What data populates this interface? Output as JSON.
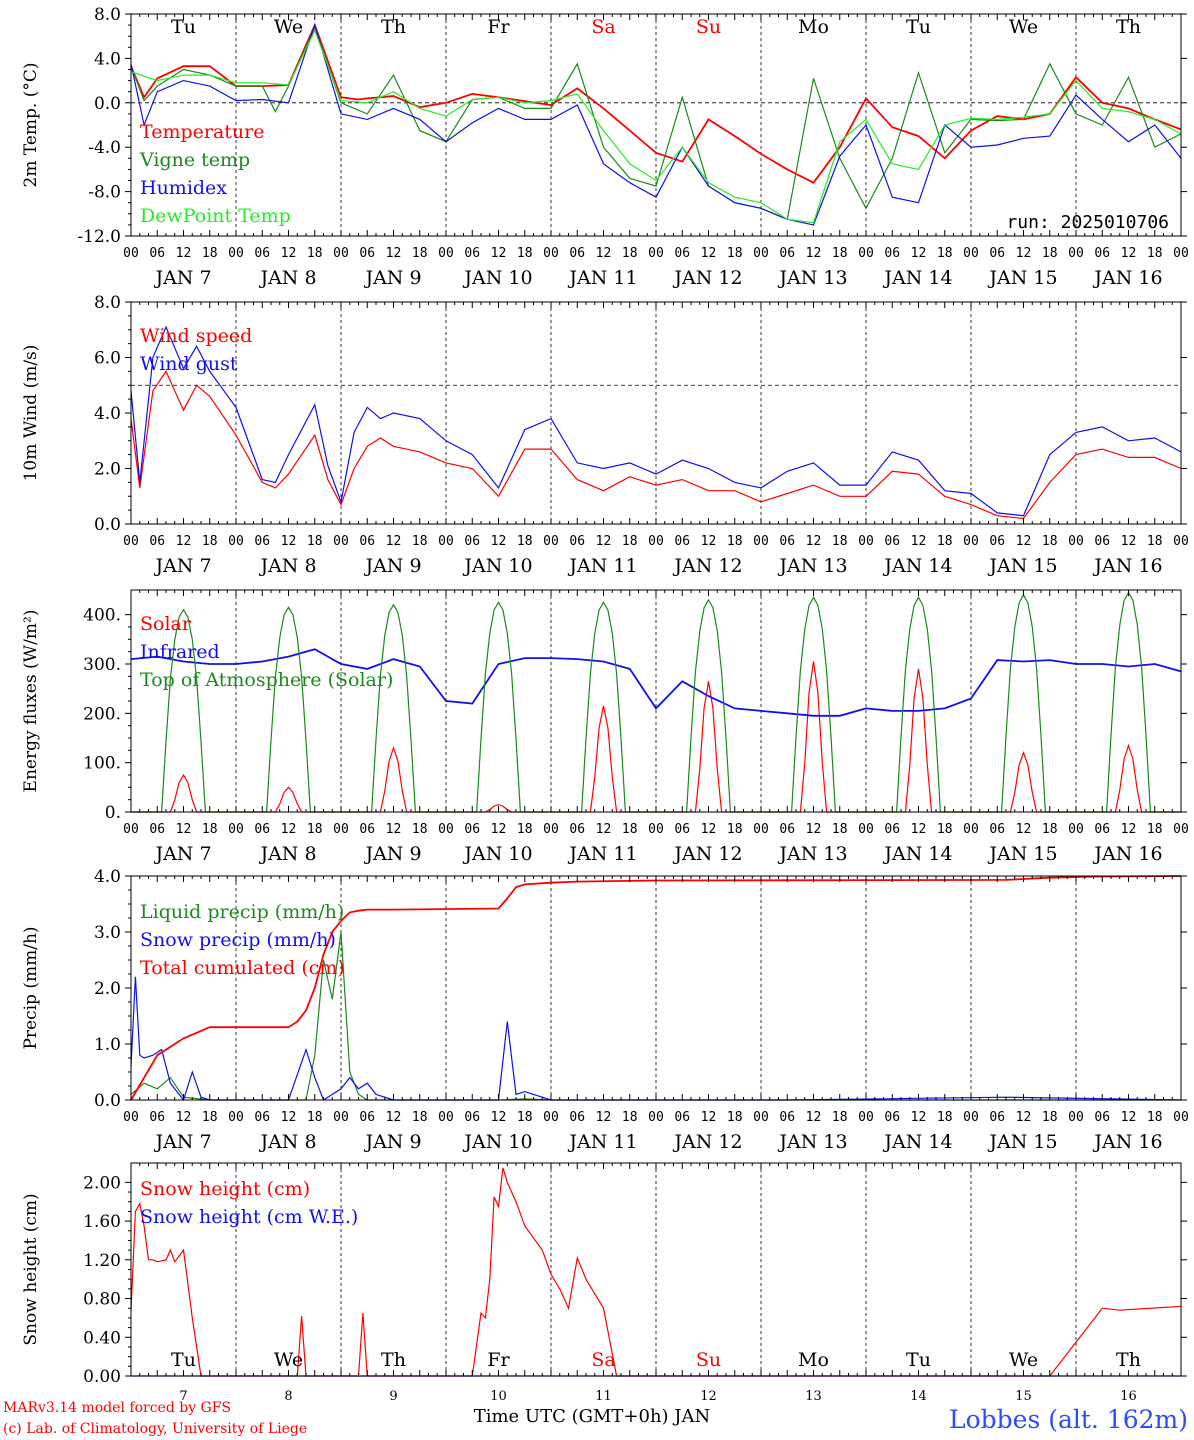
{
  "credits": {
    "model": "MARv3.14 model forced by GFS",
    "lab": "(c) Lab. of Climatology, University of Liege"
  },
  "station": "Lobbes (alt. 162m)",
  "xaxis_title": "Time UTC (GMT+0h) JAN",
  "hour_ticks": [
    "00",
    "06",
    "12",
    "18"
  ],
  "end_tick": "00",
  "day_labels": [
    "JAN  7",
    "JAN  8",
    "JAN  9",
    "JAN 10",
    "JAN 11",
    "JAN 12",
    "JAN 13",
    "JAN 14",
    "JAN 15",
    "JAN 16"
  ],
  "day_numbers": [
    "7",
    "8",
    "9",
    "10",
    "11",
    "12",
    "13",
    "14",
    "15",
    "16"
  ],
  "weekdays": [
    "Tu",
    "We",
    "Th",
    "Fr",
    "Sa",
    "Su",
    "Mo",
    "Tu",
    "We",
    "Th"
  ],
  "weekend_color": "#ff0000",
  "colors": {
    "red": "#ff0000",
    "green": "#1a8a1a",
    "blue": "#1010ee",
    "lightgreen": "#22ee22",
    "station": "#2a4bff"
  },
  "chart_data": [
    {
      "type": "line",
      "ylabel": "2m Temp. (°C)",
      "ylim": [
        -12,
        8
      ],
      "yticks": [
        "8.0",
        "4.0",
        "0.0",
        "-4.0",
        "-8.0",
        "-12.0"
      ],
      "run": "run: 2025010706",
      "zero_line": 0,
      "x_unit": "hours since 00 UTC JAN 7",
      "series": [
        {
          "name": "Temperature",
          "color": "#ff0000",
          "x": [
            0,
            3,
            6,
            12,
            18,
            24,
            30,
            36,
            42,
            48,
            52,
            54,
            60,
            66,
            72,
            78,
            84,
            96,
            102,
            108,
            114,
            120,
            126,
            132,
            138,
            144,
            150,
            156,
            162,
            168,
            174,
            180,
            186,
            192,
            198,
            204,
            210,
            216,
            222,
            228,
            234,
            240
          ],
          "y": [
            3.3,
            0.5,
            2.2,
            3.3,
            3.3,
            1.5,
            1.5,
            1.6,
            7.0,
            0.5,
            0.3,
            0.4,
            0.6,
            -0.4,
            0.0,
            0.8,
            0.5,
            -0.2,
            1.3,
            -0.5,
            -2.5,
            -4.5,
            -5.3,
            -1.5,
            -3.0,
            -4.6,
            -6.0,
            -7.2,
            -4.0,
            0.4,
            -2.2,
            -3.0,
            -5.0,
            -2.5,
            -1.2,
            -1.5,
            -1.0,
            2.3,
            0.0,
            -0.5,
            -1.5,
            -2.4
          ]
        },
        {
          "name": "Vigne temp",
          "color": "#1a8a1a",
          "x": [
            0,
            3,
            6,
            12,
            18,
            24,
            30,
            33,
            36,
            42,
            48,
            54,
            60,
            66,
            72,
            78,
            84,
            90,
            96,
            102,
            108,
            114,
            120,
            126,
            132,
            138,
            144,
            150,
            156,
            162,
            168,
            174,
            180,
            186,
            192,
            198,
            204,
            210,
            216,
            222,
            228,
            234,
            240
          ],
          "y": [
            3.3,
            0.2,
            1.5,
            3.0,
            2.5,
            1.5,
            1.5,
            -0.8,
            1.5,
            6.8,
            0.0,
            -1.0,
            2.5,
            -2.5,
            -3.5,
            0.3,
            0.5,
            -0.5,
            -0.5,
            3.5,
            -4.0,
            -6.8,
            -7.5,
            0.5,
            -7.5,
            -9.0,
            -9.5,
            -10.5,
            2.2,
            -5.0,
            -9.5,
            -5.0,
            2.7,
            -4.5,
            -1.5,
            -1.6,
            -1.5,
            3.5,
            -1.0,
            -2.0,
            2.3,
            -4.0,
            -2.8
          ]
        },
        {
          "name": "Humidex",
          "color": "#1010ee",
          "x": [
            0,
            3,
            6,
            12,
            18,
            24,
            30,
            36,
            42,
            48,
            54,
            60,
            66,
            72,
            78,
            84,
            90,
            96,
            102,
            108,
            114,
            120,
            126,
            132,
            138,
            144,
            150,
            156,
            162,
            168,
            174,
            180,
            186,
            192,
            198,
            204,
            210,
            216,
            222,
            228,
            234,
            240
          ],
          "y": [
            3.5,
            -2.0,
            1.0,
            2.0,
            1.5,
            0.2,
            0.3,
            0.0,
            7.0,
            -1.0,
            -1.5,
            -0.5,
            -1.5,
            -3.5,
            -1.8,
            -0.5,
            -1.5,
            -1.5,
            -0.2,
            -5.5,
            -7.2,
            -8.5,
            -4.0,
            -7.5,
            -9.0,
            -9.5,
            -10.5,
            -11.0,
            -4.8,
            -2.0,
            -8.5,
            -9.0,
            -2.0,
            -4.0,
            -3.8,
            -3.2,
            -3.0,
            0.7,
            -1.5,
            -3.5,
            -2.0,
            -5.0
          ]
        },
        {
          "name": "DewPoint Temp",
          "color": "#22ee22",
          "x": [
            0,
            6,
            12,
            18,
            24,
            30,
            36,
            42,
            48,
            54,
            60,
            66,
            72,
            78,
            84,
            90,
            96,
            102,
            108,
            114,
            120,
            126,
            132,
            138,
            144,
            150,
            156,
            162,
            168,
            174,
            180,
            186,
            192,
            198,
            204,
            210,
            216,
            222,
            228,
            234,
            240
          ],
          "y": [
            2.8,
            2.0,
            2.5,
            2.5,
            1.8,
            1.8,
            1.6,
            6.5,
            0.2,
            0.0,
            1.0,
            -0.5,
            -1.2,
            0.3,
            0.5,
            0.0,
            0.2,
            0.8,
            -2.5,
            -5.5,
            -7.0,
            -4.0,
            -7.2,
            -8.5,
            -9.0,
            -10.5,
            -10.8,
            -3.5,
            -1.5,
            -5.5,
            -6.0,
            -2.0,
            -1.4,
            -1.5,
            -1.3,
            -1.0,
            2.0,
            -0.5,
            -0.8,
            -1.5,
            -2.8
          ]
        }
      ]
    },
    {
      "type": "line",
      "ylabel": "10m Wind (m/s)",
      "ylim": [
        0,
        8
      ],
      "yticks": [
        "8.0",
        "6.0",
        "4.0",
        "2.0",
        "0.0"
      ],
      "ref_line": 5,
      "x_unit": "hours since 00 UTC JAN 7",
      "series": [
        {
          "name": "Wind speed",
          "color": "#ff0000",
          "x": [
            0,
            2,
            5,
            8,
            12,
            15,
            18,
            24,
            30,
            33,
            36,
            42,
            45,
            48,
            51,
            54,
            57,
            60,
            66,
            72,
            78,
            84,
            90,
            96,
            102,
            108,
            114,
            120,
            126,
            132,
            138,
            144,
            150,
            156,
            162,
            168,
            174,
            180,
            186,
            192,
            198,
            204,
            210,
            216,
            222,
            228,
            234,
            240
          ],
          "y": [
            3.8,
            1.3,
            4.8,
            5.5,
            4.1,
            5.0,
            4.6,
            3.2,
            1.5,
            1.3,
            1.8,
            3.2,
            1.6,
            0.7,
            2.0,
            2.8,
            3.1,
            2.8,
            2.6,
            2.2,
            2.0,
            1.0,
            2.7,
            2.7,
            1.6,
            1.2,
            1.7,
            1.4,
            1.6,
            1.2,
            1.2,
            0.8,
            1.1,
            1.4,
            1.0,
            1.0,
            1.9,
            1.8,
            1.0,
            0.7,
            0.3,
            0.2,
            1.5,
            2.5,
            2.7,
            2.4,
            2.4,
            2.0
          ]
        },
        {
          "name": "Wind gust",
          "color": "#1010ee",
          "x": [
            0,
            2,
            5,
            8,
            12,
            15,
            18,
            24,
            30,
            33,
            36,
            42,
            45,
            48,
            51,
            54,
            57,
            60,
            66,
            72,
            78,
            84,
            90,
            96,
            102,
            108,
            114,
            120,
            126,
            132,
            138,
            144,
            150,
            156,
            162,
            168,
            174,
            180,
            186,
            192,
            198,
            204,
            210,
            216,
            222,
            228,
            234,
            240
          ],
          "y": [
            4.8,
            1.5,
            6.0,
            7.1,
            5.6,
            6.4,
            5.5,
            4.2,
            1.6,
            1.5,
            2.5,
            4.3,
            2.1,
            0.8,
            3.3,
            4.2,
            3.8,
            4.0,
            3.8,
            3.0,
            2.5,
            1.3,
            3.4,
            3.8,
            2.2,
            2.0,
            2.2,
            1.8,
            2.3,
            2.0,
            1.5,
            1.3,
            1.9,
            2.2,
            1.4,
            1.4,
            2.6,
            2.3,
            1.2,
            1.1,
            0.4,
            0.3,
            2.5,
            3.3,
            3.5,
            3.0,
            3.1,
            2.6
          ]
        }
      ]
    },
    {
      "type": "line",
      "ylabel": "Energy fluxes (W/m²)",
      "ylim": [
        0,
        450
      ],
      "yticks": [
        "400.",
        "300.",
        "200.",
        "100.",
        "0."
      ],
      "x_unit": "hours since 00 UTC JAN 7",
      "series": [
        {
          "name": "Solar",
          "color": "#ff0000",
          "peaks": [
            75,
            50,
            130,
            15,
            215,
            265,
            305,
            290,
            120,
            135
          ]
        },
        {
          "name": "Infrared",
          "color": "#1010ee",
          "x": [
            0,
            6,
            12,
            18,
            24,
            30,
            36,
            42,
            48,
            54,
            60,
            66,
            72,
            78,
            84,
            90,
            96,
            102,
            108,
            114,
            120,
            126,
            132,
            138,
            144,
            150,
            156,
            162,
            168,
            174,
            180,
            186,
            192,
            198,
            204,
            210,
            216,
            222,
            228,
            234,
            240
          ],
          "y": [
            310,
            315,
            305,
            300,
            300,
            305,
            315,
            330,
            300,
            290,
            310,
            295,
            225,
            220,
            300,
            312,
            312,
            310,
            305,
            290,
            210,
            265,
            235,
            210,
            205,
            200,
            195,
            195,
            210,
            205,
            205,
            210,
            230,
            308,
            305,
            308,
            300,
            300,
            295,
            300,
            285
          ]
        },
        {
          "name": "Top of Atmosphere (Solar)",
          "color": "#1a8a1a",
          "peaks": [
            410,
            415,
            420,
            425,
            425,
            430,
            435,
            435,
            440,
            445
          ]
        }
      ]
    },
    {
      "type": "line",
      "ylabel": "Precip (mm/h)",
      "ylim": [
        0,
        4
      ],
      "yticks": [
        "4.0",
        "3.0",
        "2.0",
        "1.0",
        "0.0"
      ],
      "x_unit": "hours since 00 UTC JAN 7",
      "series": [
        {
          "name": "Liquid precip (mm/h)",
          "color": "#1a8a1a",
          "x": [
            0,
            3,
            6,
            9,
            12,
            18,
            24,
            36,
            40,
            42,
            44,
            46,
            48,
            50,
            52,
            54,
            60,
            84,
            90,
            96,
            120,
            240
          ],
          "y": [
            0.1,
            0.3,
            0.2,
            0.4,
            0.05,
            0,
            0,
            0,
            0,
            0.8,
            2.5,
            1.8,
            3.0,
            0.5,
            0.1,
            0,
            0,
            0,
            0.02,
            0,
            0,
            0
          ]
        },
        {
          "name": "Snow precip (mm/h)",
          "color": "#1010ee",
          "x": [
            0,
            1,
            2,
            3,
            5,
            7,
            9,
            12,
            14,
            16,
            18,
            24,
            36,
            40,
            42,
            44,
            46,
            48,
            50,
            52,
            54,
            56,
            60,
            84,
            86,
            88,
            90,
            92,
            96,
            100,
            120,
            150,
            200,
            240
          ],
          "y": [
            0.6,
            2.2,
            0.8,
            0.75,
            0.8,
            0.9,
            0.3,
            0.0,
            0.5,
            0.05,
            0,
            0,
            0,
            0.9,
            0.4,
            0.0,
            0.1,
            0.2,
            0.4,
            0.2,
            0.3,
            0.1,
            0.0,
            0.0,
            1.4,
            0.1,
            0.15,
            0.1,
            0.0,
            0.0,
            0.0,
            0.0,
            0.05,
            0.0
          ]
        },
        {
          "name": "Total cumulated (cm)",
          "color": "#ff0000",
          "x": [
            0,
            6,
            12,
            18,
            36,
            38,
            40,
            42,
            44,
            46,
            48,
            50,
            52,
            54,
            56,
            60,
            84,
            86,
            88,
            90,
            96,
            102,
            120,
            200,
            210,
            220,
            240
          ],
          "y": [
            0,
            0.8,
            1.1,
            1.3,
            1.3,
            1.4,
            1.6,
            2.0,
            2.6,
            3.0,
            3.2,
            3.35,
            3.38,
            3.4,
            3.4,
            3.4,
            3.42,
            3.6,
            3.8,
            3.85,
            3.88,
            3.9,
            3.92,
            3.93,
            3.97,
            3.99,
            4.0
          ]
        }
      ]
    },
    {
      "type": "line",
      "ylabel": "Snow height (cm)",
      "ylim": [
        0,
        2.2
      ],
      "yticks": [
        "2.00",
        "1.60",
        "1.20",
        "0.80",
        "0.40",
        "0.00"
      ],
      "x_unit": "hours since 00 UTC JAN 7",
      "series": [
        {
          "name": "Snow height (cm)",
          "color": "#ff0000",
          "x": [
            0,
            1,
            2,
            3,
            4,
            5,
            6,
            8,
            9,
            10,
            12,
            14,
            16,
            18,
            24,
            36,
            38,
            39,
            40,
            42,
            48,
            52,
            53,
            54,
            56,
            60,
            72,
            78,
            80,
            81,
            82,
            83,
            84,
            85,
            86,
            88,
            90,
            94,
            96,
            98,
            100,
            102,
            104,
            108,
            111,
            112,
            114,
            120,
            210,
            222,
            226,
            240
          ],
          "y": [
            0.67,
            1.7,
            1.78,
            1.55,
            1.2,
            1.2,
            1.18,
            1.2,
            1.3,
            1.18,
            1.3,
            0.6,
            0.0,
            0.0,
            0.0,
            0.0,
            0.0,
            0.62,
            0.0,
            0.0,
            0.0,
            0.0,
            0.65,
            0.0,
            0.0,
            0.0,
            0.0,
            0.0,
            0.65,
            0.6,
            1.0,
            1.85,
            1.75,
            2.15,
            2.0,
            1.8,
            1.55,
            1.3,
            1.05,
            0.9,
            0.7,
            1.22,
            1.0,
            0.7,
            0.0,
            0.0,
            0.0,
            0.0,
            0.0,
            0.7,
            0.68,
            0.72
          ]
        },
        {
          "name": "Snow height (cm W.E.)",
          "color": "#1010ee",
          "x": [
            0,
            240
          ],
          "y": [
            0,
            0
          ]
        }
      ]
    }
  ]
}
